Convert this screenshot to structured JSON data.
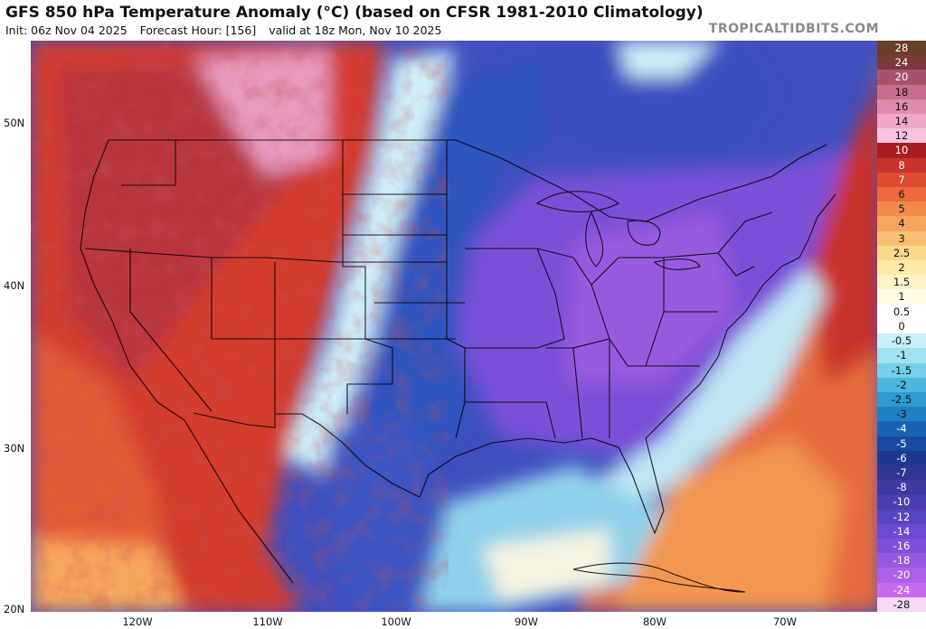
{
  "header": {
    "title": "GFS 850 hPa Temperature Anomaly (°C) (based on CFSR 1981-2010 Climatology)",
    "init": "Init: 06z Nov 04 2025",
    "forecast_hour": "Forecast Hour: [156]",
    "valid": "valid at 18z Mon, Nov 10 2025",
    "source": "TROPICALTIDBITS.COM"
  },
  "map": {
    "lat_labels": [
      "50N",
      "40N",
      "30N",
      "20N"
    ],
    "lon_labels": [
      "120W",
      "110W",
      "100W",
      "90W",
      "80W",
      "70W"
    ],
    "extent": {
      "lon": [
        -128,
        -63
      ],
      "lat": [
        20,
        55
      ]
    }
  },
  "colorbar": {
    "levels": [
      "28",
      "24",
      "20",
      "18",
      "16",
      "14",
      "12",
      "10",
      "8",
      "7",
      "6",
      "5",
      "4",
      "3",
      "2.5",
      "2",
      "1.5",
      "1",
      "0.5",
      "0",
      "-0.5",
      "-1",
      "-1.5",
      "-2",
      "-2.5",
      "-3",
      "-4",
      "-5",
      "-6",
      "-7",
      "-8",
      "-10",
      "-12",
      "-14",
      "-16",
      "-18",
      "-20",
      "-24",
      "-28"
    ],
    "colors": [
      "#6b3f24",
      "#7a3a3a",
      "#a8536e",
      "#c76e90",
      "#e08ab0",
      "#f0a6cb",
      "#f7c2dc",
      "#a61e22",
      "#c8322a",
      "#de4a30",
      "#ec6a3e",
      "#f28a4c",
      "#f6a65c",
      "#f9c073",
      "#fbd98c",
      "#fdeaa8",
      "#fff4c8",
      "#fffbe6",
      "#ffffff",
      "#ffffff",
      "#c7f0f7",
      "#9fe3f0",
      "#73d0e8",
      "#4bb7de",
      "#2e9bd1",
      "#1f7fc4",
      "#1a63b3",
      "#1a4aa0",
      "#20398e",
      "#2f3590",
      "#3d3aa0",
      "#4a3fb2",
      "#5845c2",
      "#6a4bd1",
      "#7e52dc",
      "#9558e3",
      "#ab60e7",
      "#c66ceb",
      "#f4d9f6"
    ]
  }
}
